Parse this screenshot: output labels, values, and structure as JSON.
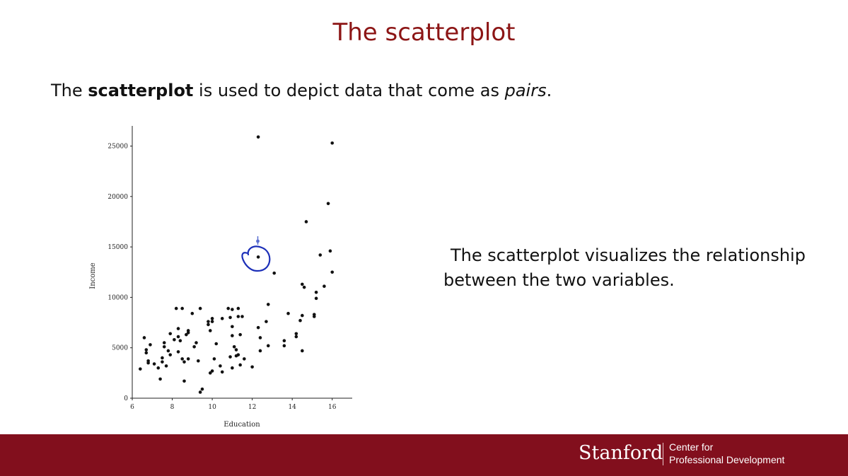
{
  "slide": {
    "title": "The scatterplot",
    "intro": {
      "pre": "The ",
      "bold": "scatterplot",
      "mid": " is used to depict data that come as ",
      "italic": "pairs",
      "post": "."
    },
    "side_text": "The scatterplot visualizes the relationship between the two variables."
  },
  "footer": {
    "brand": "Stanford",
    "line1": "Center for",
    "line2": "Professional Development"
  },
  "colors": {
    "brand_red": "#820f1d",
    "title_red": "#8c1515",
    "annotation_blue": "#1c2fb8",
    "point": "#111111"
  },
  "chart_data": {
    "type": "scatter",
    "xlabel": "Education",
    "ylabel": "Income",
    "xlim": [
      6,
      17
    ],
    "ylim": [
      0,
      27000
    ],
    "xticks": [
      6,
      8,
      10,
      12,
      14,
      16
    ],
    "yticks": [
      0,
      5000,
      10000,
      15000,
      20000,
      25000
    ],
    "grid": false,
    "points": [
      [
        6.4,
        2900
      ],
      [
        6.6,
        6000
      ],
      [
        6.7,
        4800
      ],
      [
        6.7,
        4500
      ],
      [
        6.8,
        3700
      ],
      [
        6.8,
        3500
      ],
      [
        6.9,
        5300
      ],
      [
        7.1,
        3400
      ],
      [
        7.3,
        3000
      ],
      [
        7.4,
        1900
      ],
      [
        7.5,
        4000
      ],
      [
        7.5,
        3600
      ],
      [
        7.6,
        5500
      ],
      [
        7.6,
        5100
      ],
      [
        7.7,
        3200
      ],
      [
        7.8,
        4700
      ],
      [
        7.9,
        6400
      ],
      [
        7.9,
        4300
      ],
      [
        8.1,
        5800
      ],
      [
        8.2,
        8900
      ],
      [
        8.3,
        6900
      ],
      [
        8.3,
        6100
      ],
      [
        8.3,
        4600
      ],
      [
        8.4,
        5700
      ],
      [
        8.5,
        8900
      ],
      [
        8.5,
        3900
      ],
      [
        8.6,
        3600
      ],
      [
        8.6,
        1700
      ],
      [
        8.7,
        6300
      ],
      [
        8.8,
        6700
      ],
      [
        8.8,
        6500
      ],
      [
        8.8,
        3900
      ],
      [
        9.0,
        8400
      ],
      [
        9.1,
        5100
      ],
      [
        9.2,
        5500
      ],
      [
        9.3,
        3700
      ],
      [
        9.4,
        8900
      ],
      [
        9.4,
        600
      ],
      [
        9.5,
        900
      ],
      [
        9.8,
        7600
      ],
      [
        9.8,
        7300
      ],
      [
        9.9,
        6700
      ],
      [
        9.9,
        2500
      ],
      [
        10.0,
        7900
      ],
      [
        10.0,
        7600
      ],
      [
        10.0,
        2700
      ],
      [
        10.1,
        3900
      ],
      [
        10.2,
        5400
      ],
      [
        10.4,
        3200
      ],
      [
        10.5,
        7900
      ],
      [
        10.5,
        2600
      ],
      [
        10.8,
        8900
      ],
      [
        10.9,
        8000
      ],
      [
        10.9,
        4100
      ],
      [
        11.0,
        8800
      ],
      [
        11.0,
        7100
      ],
      [
        11.0,
        6200
      ],
      [
        11.0,
        3000
      ],
      [
        11.1,
        5100
      ],
      [
        11.2,
        4800
      ],
      [
        11.2,
        4200
      ],
      [
        11.3,
        8900
      ],
      [
        11.3,
        8100
      ],
      [
        11.3,
        4300
      ],
      [
        11.4,
        6300
      ],
      [
        11.4,
        3300
      ],
      [
        11.5,
        8100
      ],
      [
        11.6,
        3900
      ],
      [
        12.0,
        3100
      ],
      [
        12.3,
        25900
      ],
      [
        12.3,
        7000
      ],
      [
        12.3,
        14000
      ],
      [
        12.4,
        4700
      ],
      [
        12.4,
        6000
      ],
      [
        12.7,
        7600
      ],
      [
        12.8,
        9300
      ],
      [
        12.8,
        5200
      ],
      [
        13.1,
        12400
      ],
      [
        13.6,
        5700
      ],
      [
        13.6,
        5200
      ],
      [
        13.8,
        8400
      ],
      [
        14.2,
        6100
      ],
      [
        14.2,
        6400
      ],
      [
        14.4,
        7700
      ],
      [
        14.5,
        8200
      ],
      [
        14.5,
        4700
      ],
      [
        14.5,
        11300
      ],
      [
        14.6,
        11000
      ],
      [
        14.7,
        17500
      ],
      [
        15.1,
        8300
      ],
      [
        15.1,
        8100
      ],
      [
        15.2,
        9900
      ],
      [
        15.2,
        10500
      ],
      [
        15.4,
        14200
      ],
      [
        15.6,
        11100
      ],
      [
        15.8,
        19300
      ],
      [
        15.9,
        14600
      ],
      [
        16.0,
        25300
      ],
      [
        16.0,
        12500
      ]
    ]
  }
}
